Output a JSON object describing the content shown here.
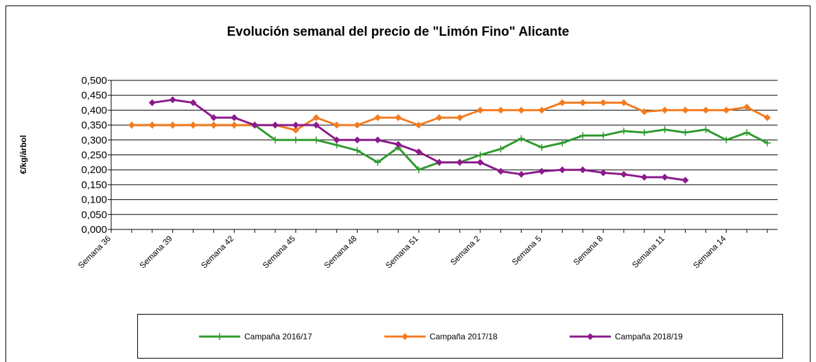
{
  "chart_data": {
    "type": "line",
    "title": "Evolución semanal del precio de \"Limón Fino\" Alicante",
    "y_label": "€/kg/árbol",
    "categories": [
      "Semana 36",
      null,
      null,
      "Semana 39",
      null,
      null,
      "Semana 42",
      null,
      null,
      "Semana 45",
      null,
      null,
      "Semana 48",
      null,
      null,
      "Semana 51",
      null,
      null,
      "Semana 2",
      null,
      null,
      "Semana 5",
      null,
      null,
      "Semana 8",
      null,
      null,
      "Semana 11",
      null,
      null,
      "Semana 14",
      null,
      null
    ],
    "series": [
      {
        "name": "Campaña 2016/17",
        "color": "#2e9a2e",
        "marker": "plus",
        "values": [
          null,
          0.35,
          0.35,
          0.35,
          0.35,
          0.35,
          0.35,
          0.35,
          0.3,
          0.3,
          0.3,
          0.283,
          0.265,
          0.225,
          0.275,
          0.2,
          0.225,
          0.225,
          0.25,
          0.27,
          0.305,
          0.275,
          0.29,
          0.315,
          0.315,
          0.33,
          0.325,
          0.335,
          0.325,
          0.335,
          0.3,
          0.325,
          0.29
        ]
      },
      {
        "name": "Campaña 2017/18",
        "color": "#f47b20",
        "marker": "diamond",
        "values": [
          null,
          0.35,
          0.35,
          0.35,
          0.35,
          0.35,
          0.35,
          0.35,
          0.35,
          0.333,
          0.375,
          0.35,
          0.35,
          0.375,
          0.375,
          0.35,
          0.375,
          0.375,
          0.4,
          0.4,
          0.4,
          0.4,
          0.425,
          0.425,
          0.425,
          0.425,
          0.395,
          0.4,
          0.4,
          0.4,
          0.4,
          0.41,
          0.375
        ]
      },
      {
        "name": "Campaña 2018/19",
        "color": "#8b1a8b",
        "marker": "diamond",
        "values": [
          null,
          null,
          0.425,
          0.435,
          0.425,
          0.375,
          0.375,
          0.35,
          0.35,
          0.35,
          0.35,
          0.3,
          0.3,
          0.3,
          0.285,
          0.26,
          0.225,
          0.225,
          0.225,
          0.195,
          0.185,
          0.195,
          0.2,
          0.2,
          0.19,
          0.185,
          0.175,
          0.175,
          0.165,
          null,
          null,
          null,
          null
        ]
      }
    ],
    "ylim": [
      0,
      0.5
    ],
    "yticks": [
      {
        "value": 0,
        "label": "0,000"
      },
      {
        "value": 0.05,
        "label": "0,050"
      },
      {
        "value": 0.1,
        "label": "0,100"
      },
      {
        "value": 0.15,
        "label": "0,150"
      },
      {
        "value": 0.2,
        "label": "0,200"
      },
      {
        "value": 0.25,
        "label": "0,250"
      },
      {
        "value": 0.3,
        "label": "0,300"
      },
      {
        "value": 0.35,
        "label": "0,350"
      },
      {
        "value": 0.4,
        "label": "0,400"
      },
      {
        "value": 0.45,
        "label": "0,450"
      },
      {
        "value": 0.5,
        "label": "0,500"
      }
    ],
    "grid": true,
    "legend": "bottom"
  }
}
